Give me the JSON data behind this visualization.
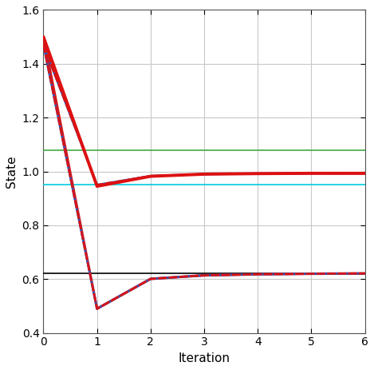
{
  "upper_blue": [
    1.47,
    0.95,
    0.983,
    0.99,
    0.992,
    0.993,
    0.993
  ],
  "upper_red": [
    1.5,
    0.945,
    0.982,
    0.99,
    0.992,
    0.993,
    0.993
  ],
  "upper_reddash": [
    1.47,
    0.95,
    0.983,
    0.99,
    0.992,
    0.993,
    0.993
  ],
  "lower_blue": [
    1.47,
    0.49,
    0.601,
    0.614,
    0.618,
    0.62,
    0.621
  ],
  "lower_red": [
    1.5,
    0.49,
    0.601,
    0.614,
    0.618,
    0.62,
    0.621
  ],
  "lower_reddash": [
    1.47,
    0.49,
    0.601,
    0.614,
    0.618,
    0.62,
    0.621
  ],
  "x": [
    0,
    1,
    2,
    3,
    4,
    5,
    6
  ],
  "hline_black": 0.623,
  "hline_cyan": 0.952,
  "hline_green": 1.078,
  "xlim": [
    0,
    6
  ],
  "ylim": [
    0.4,
    1.6
  ],
  "xticks": [
    0,
    1,
    2,
    3,
    4,
    5,
    6
  ],
  "yticks": [
    0.4,
    0.6,
    0.8,
    1.0,
    1.2,
    1.4,
    1.6
  ],
  "xlabel": "Iteration",
  "ylabel": "State",
  "blue_color": "#1f5fc9",
  "red_color": "#dd1111",
  "black_color": "#000000",
  "cyan_color": "#00ccdd",
  "green_color": "#44aa44",
  "background": "#ffffff",
  "grid_color": "#c8c8c8"
}
